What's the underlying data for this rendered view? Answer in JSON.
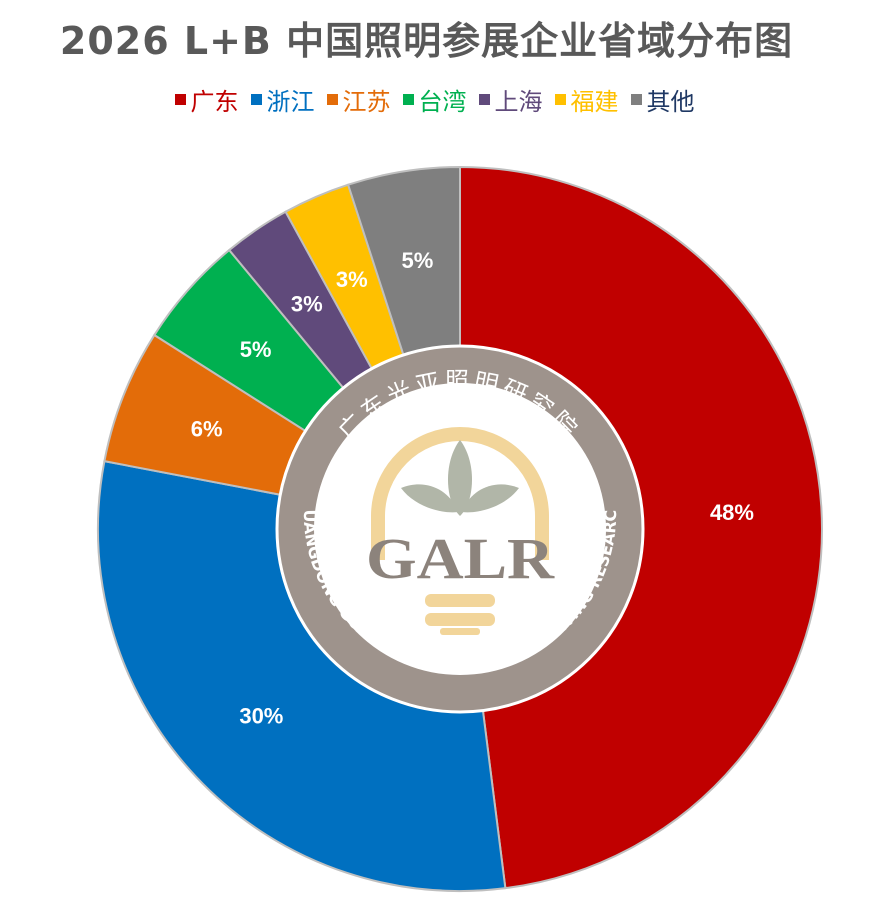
{
  "chart_data": {
    "type": "pie",
    "title": "2026 L+B 中国照明参展企业省域分布图",
    "legend_position": "top",
    "categories": [
      "广东",
      "浙江",
      "江苏",
      "台湾",
      "上海",
      "福建",
      "其他"
    ],
    "values": [
      48,
      30,
      6,
      5,
      3,
      3,
      5
    ],
    "value_labels": [
      "48%",
      "30%",
      "6%",
      "5%",
      "3%",
      "3%",
      "5%"
    ],
    "colors": [
      "#c00000",
      "#0070c0",
      "#e36c09",
      "#00b050",
      "#604a7b",
      "#ffc000",
      "#7f7f7f"
    ],
    "legend_text_colors": [
      "#c00000",
      "#0070c0",
      "#e36c09",
      "#00b050",
      "#604a7b",
      "#ffc000",
      "#1f3864"
    ]
  },
  "logo": {
    "name_cn": "广东光亚照明研究院",
    "abbr": "GALR",
    "name_en": "GUANGDONG GUANGYA ACADEMY OF LIGHTING RESEARCH",
    "colors": {
      "ring": "#9e938c",
      "ring_border": "#ffffff",
      "arch": "#f2d59a",
      "leaves": "#b1b6a8",
      "text": "#8c837c"
    }
  }
}
